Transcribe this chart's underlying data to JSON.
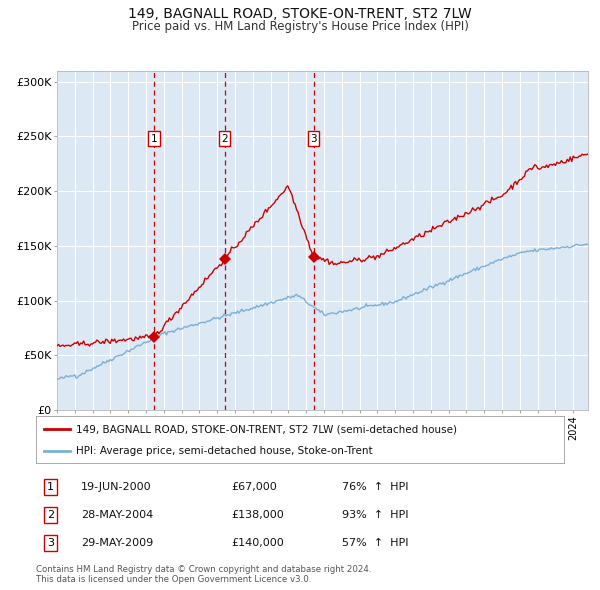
{
  "title": "149, BAGNALL ROAD, STOKE-ON-TRENT, ST2 7LW",
  "subtitle": "Price paid vs. HM Land Registry's House Price Index (HPI)",
  "background_color": "#dce9f5",
  "plot_bg_color": "#dce9f5",
  "grid_color": "#ffffff",
  "hpi_line_color": "#7bafd4",
  "price_line_color": "#cc0000",
  "marker_color": "#cc0000",
  "vline_color": "#cc0000",
  "legend1": "149, BAGNALL ROAD, STOKE-ON-TRENT, ST2 7LW (semi-detached house)",
  "legend2": "HPI: Average price, semi-detached house, Stoke-on-Trent",
  "transactions": [
    {
      "num": 1,
      "date": "19-JUN-2000",
      "price": 67000,
      "pct": "76%",
      "dir": "↑",
      "x_year": 2000.46
    },
    {
      "num": 2,
      "date": "28-MAY-2004",
      "price": 138000,
      "pct": "93%",
      "dir": "↑",
      "x_year": 2004.41
    },
    {
      "num": 3,
      "date": "29-MAY-2009",
      "price": 140000,
      "pct": "57%",
      "dir": "↑",
      "x_year": 2009.41
    }
  ],
  "footnote1": "Contains HM Land Registry data © Crown copyright and database right 2024.",
  "footnote2": "This data is licensed under the Open Government Licence v3.0.",
  "ylim": [
    0,
    310000
  ],
  "xlim_start": 1995.0,
  "xlim_end": 2024.83
}
